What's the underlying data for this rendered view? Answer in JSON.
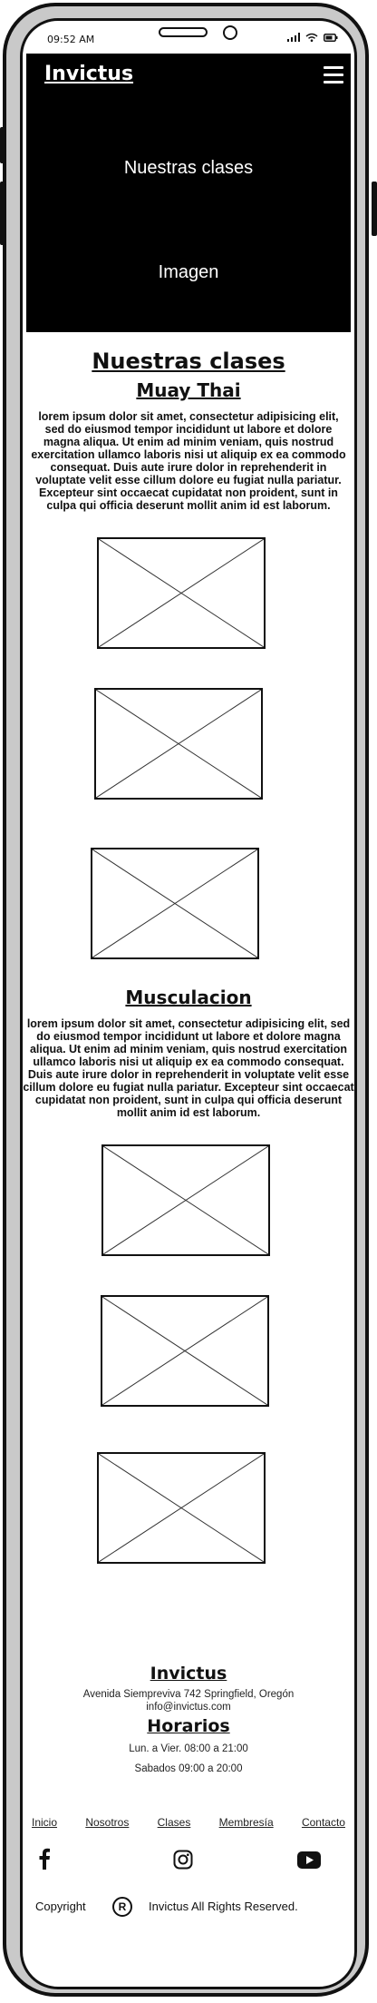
{
  "status_bar": {
    "time": "09:52 AM"
  },
  "header": {
    "brand": "Invictus",
    "hero_title": "Nuestras clases",
    "hero_image_label": "Imagen"
  },
  "main": {
    "section_title": "Nuestras clases",
    "classes": [
      {
        "name": "Muay Thai",
        "description": "lorem ipsum dolor sit amet, consectetur adipisicing elit, sed do eiusmod tempor incididunt ut labore et dolore magna aliqua. Ut enim ad minim veniam, quis nostrud exercitation ullamco laboris nisi ut aliquip ex ea commodo consequat. Duis aute irure dolor in reprehenderit in voluptate velit esse cillum dolore eu fugiat nulla pariatur. Excepteur sint occaecat cupidatat non proident, sunt in culpa qui officia deserunt mollit anim id est laborum."
      },
      {
        "name": "Musculacion",
        "description": "lorem ipsum dolor sit amet, consectetur adipisicing elit, sed do eiusmod tempor incididunt ut labore et dolore magna aliqua. Ut enim ad minim veniam, quis nostrud exercitation ullamco laboris nisi ut aliquip ex ea commodo consequat. Duis aute irure dolor in reprehenderit in voluptate velit esse cillum dolore eu fugiat nulla pariatur. Excepteur sint occaecat cupidatat non proident, sunt in culpa qui officia deserunt mollit anim id est laborum."
      }
    ]
  },
  "footer": {
    "brand": "Invictus",
    "address": "Avenida Siempreviva 742 Springfield, Oregón",
    "email": "info@invictus.com",
    "hours_title": "Horarios",
    "hours": [
      "Lun. a Vier. 08:00 a 21:00",
      "Sabados 09:00 a 20:00"
    ],
    "nav": [
      "Inicio",
      "Nosotros",
      "Clases",
      "Membresía",
      "Contacto"
    ],
    "social_icons": [
      "facebook-icon",
      "instagram-icon",
      "youtube-icon"
    ],
    "copyright_label": "Copyright",
    "copyright_symbol": "R",
    "copyright_text": "Invictus All Rights Reserved."
  }
}
